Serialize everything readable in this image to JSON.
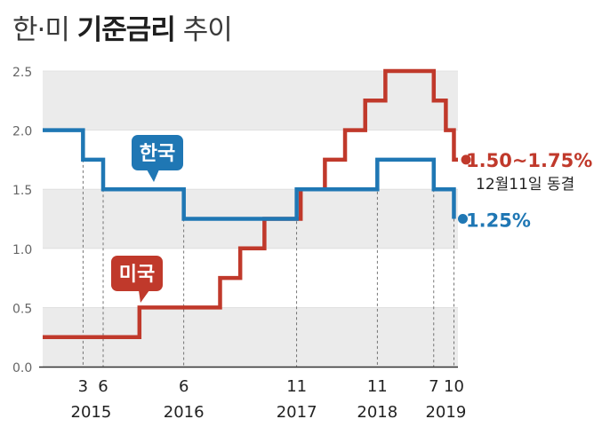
{
  "title": {
    "part1": "한·미",
    "part2": "기준금리",
    "part3": "추이"
  },
  "colors": {
    "korea": "#1f77b4",
    "usa": "#c0392b",
    "band": "#ebebeb",
    "axis": "#333333"
  },
  "chart_data": {
    "type": "line",
    "step": true,
    "ylim": [
      0,
      2.5
    ],
    "yticks": [
      "0.0",
      "0.5",
      "1.0",
      "1.5",
      "2.0",
      "2.5"
    ],
    "xlim": [
      2014.7,
      2019.85
    ],
    "x_month_labels": [
      {
        "x": 2015.2,
        "text": "3"
      },
      {
        "x": 2015.45,
        "text": "6"
      },
      {
        "x": 2016.45,
        "text": "6"
      },
      {
        "x": 2017.85,
        "text": "11"
      },
      {
        "x": 2018.85,
        "text": "11"
      },
      {
        "x": 2019.55,
        "text": "7"
      },
      {
        "x": 2019.8,
        "text": "10"
      }
    ],
    "x_year_labels": [
      {
        "x": 2015.3,
        "text": "2015"
      },
      {
        "x": 2016.45,
        "text": "2016"
      },
      {
        "x": 2017.85,
        "text": "2017"
      },
      {
        "x": 2018.85,
        "text": "2018"
      },
      {
        "x": 2019.7,
        "text": "2019"
      }
    ],
    "series": [
      {
        "name": "한국",
        "color": "#1f77b4",
        "points": [
          {
            "x": 2014.7,
            "y": 2.0
          },
          {
            "x": 2015.2,
            "y": 1.75
          },
          {
            "x": 2015.45,
            "y": 1.5
          },
          {
            "x": 2016.45,
            "y": 1.25
          },
          {
            "x": 2017.85,
            "y": 1.5
          },
          {
            "x": 2018.85,
            "y": 1.75
          },
          {
            "x": 2019.55,
            "y": 1.5
          },
          {
            "x": 2019.8,
            "y": 1.25
          }
        ],
        "end_x": 2019.8,
        "end_value": 1.25,
        "end_label": "1.25%"
      },
      {
        "name": "미국",
        "color": "#c0392b",
        "points": [
          {
            "x": 2014.7,
            "y": 0.25
          },
          {
            "x": 2015.9,
            "y": 0.5
          },
          {
            "x": 2016.9,
            "y": 0.75
          },
          {
            "x": 2017.15,
            "y": 1.0
          },
          {
            "x": 2017.45,
            "y": 1.25
          },
          {
            "x": 2017.9,
            "y": 1.5
          },
          {
            "x": 2018.2,
            "y": 1.75
          },
          {
            "x": 2018.45,
            "y": 2.0
          },
          {
            "x": 2018.7,
            "y": 2.25
          },
          {
            "x": 2018.95,
            "y": 2.5
          },
          {
            "x": 2019.55,
            "y": 2.25
          },
          {
            "x": 2019.7,
            "y": 2.0
          },
          {
            "x": 2019.8,
            "y": 1.75
          }
        ],
        "end_x": 2019.95,
        "end_value": 1.75,
        "end_label": "1.50~1.75%",
        "end_note": "12월11일 동결"
      }
    ]
  }
}
